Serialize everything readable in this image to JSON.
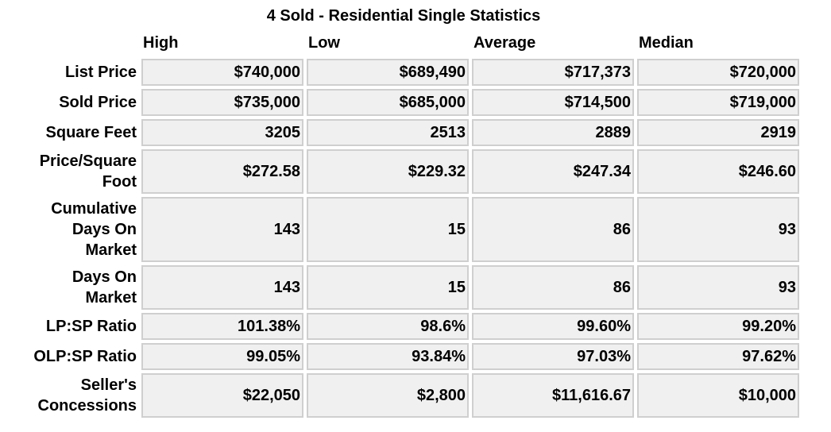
{
  "title": "4 Sold - Residential Single Statistics",
  "columns": [
    "High",
    "Low",
    "Average",
    "Median"
  ],
  "rows": [
    {
      "label_lines": [
        "List Price"
      ],
      "values": [
        "$740,000",
        "$689,490",
        "$717,373",
        "$720,000"
      ]
    },
    {
      "label_lines": [
        "Sold Price"
      ],
      "values": [
        "$735,000",
        "$685,000",
        "$714,500",
        "$719,000"
      ]
    },
    {
      "label_lines": [
        "Square Feet"
      ],
      "values": [
        "3205",
        "2513",
        "2889",
        "2919"
      ]
    },
    {
      "label_lines": [
        "Price/Square",
        "Foot"
      ],
      "values": [
        "$272.58",
        "$229.32",
        "$247.34",
        "$246.60"
      ]
    },
    {
      "label_lines": [
        "Cumulative",
        "Days On",
        "Market"
      ],
      "values": [
        "143",
        "15",
        "86",
        "93"
      ]
    },
    {
      "label_lines": [
        "Days On",
        "Market"
      ],
      "values": [
        "143",
        "15",
        "86",
        "93"
      ]
    },
    {
      "label_lines": [
        "LP:SP Ratio"
      ],
      "values": [
        "101.38%",
        "98.6%",
        "99.60%",
        "99.20%"
      ]
    },
    {
      "label_lines": [
        "OLP:SP Ratio"
      ],
      "values": [
        "99.05%",
        "93.84%",
        "97.03%",
        "97.62%"
      ]
    },
    {
      "label_lines": [
        "Seller's",
        "Concessions"
      ],
      "values": [
        "$22,050",
        "$2,800",
        "$11,616.67",
        "$10,000"
      ]
    }
  ]
}
